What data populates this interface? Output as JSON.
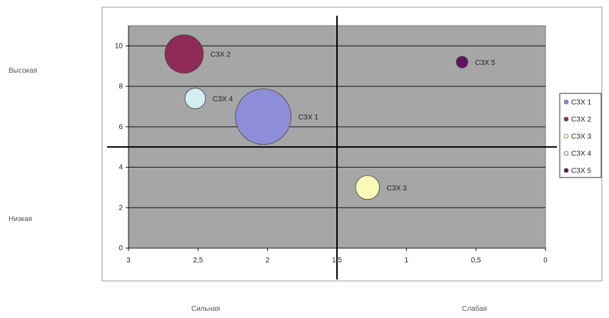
{
  "side_labels": {
    "high": "Высокая",
    "low": "Низкая"
  },
  "bottom_labels": {
    "strong": "Сильная",
    "weak": "Слабая"
  },
  "chart_data": {
    "type": "bubble",
    "x_reversed": true,
    "xlim": [
      0,
      3
    ],
    "ylim": [
      0,
      11
    ],
    "x_ticks": [
      {
        "value": 3,
        "label": "3"
      },
      {
        "value": 2.5,
        "label": "2,5"
      },
      {
        "value": 2,
        "label": "2"
      },
      {
        "value": 1.5,
        "label": "1,5"
      },
      {
        "value": 1,
        "label": "1"
      },
      {
        "value": 0.5,
        "label": "0,5"
      },
      {
        "value": 0,
        "label": "0"
      }
    ],
    "y_ticks": [
      {
        "value": 0,
        "label": "0"
      },
      {
        "value": 2,
        "label": "2"
      },
      {
        "value": 4,
        "label": "4"
      },
      {
        "value": 6,
        "label": "6"
      },
      {
        "value": 8,
        "label": "8"
      },
      {
        "value": 10,
        "label": "10"
      }
    ],
    "divider": {
      "x": 1.5,
      "y": 5
    },
    "grid": true,
    "legend_position": "right",
    "plot_background": "#a6a6a6",
    "series": [
      {
        "name": "СЗХ 1",
        "x": 2.03,
        "y": 6.5,
        "size": 1.0,
        "color": "#8e8ed8"
      },
      {
        "name": "СЗХ 2",
        "x": 2.6,
        "y": 9.6,
        "size": 0.69,
        "color": "#8f2a57"
      },
      {
        "name": "СЗХ 3",
        "x": 1.28,
        "y": 3.0,
        "size": 0.43,
        "color": "#fafab8"
      },
      {
        "name": "СЗХ 4",
        "x": 2.52,
        "y": 7.4,
        "size": 0.37,
        "color": "#d3eef3"
      },
      {
        "name": "СЗХ 5",
        "x": 0.6,
        "y": 9.2,
        "size": 0.21,
        "color": "#62125f"
      }
    ]
  }
}
